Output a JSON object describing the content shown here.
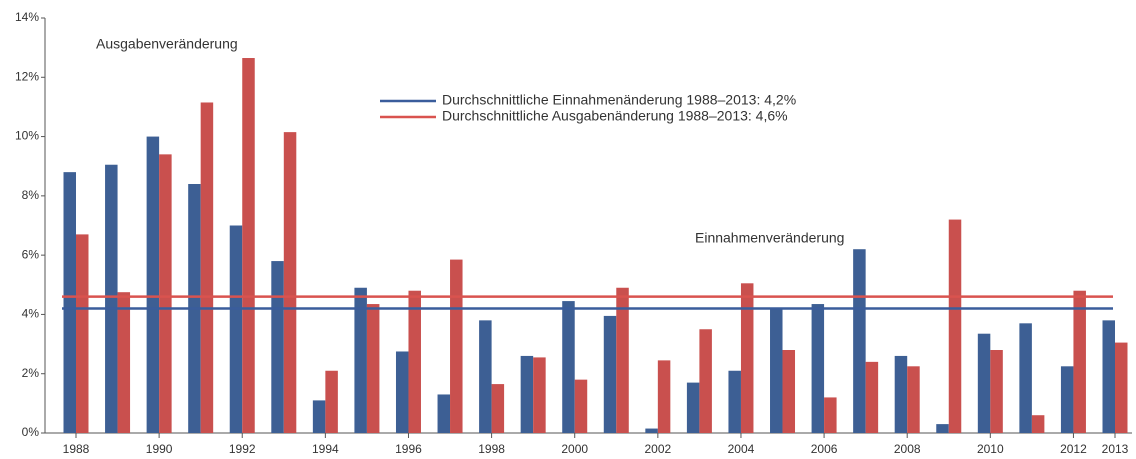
{
  "chart_data": {
    "type": "bar",
    "categories": [
      "1988",
      null,
      "1990",
      null,
      "1992",
      null,
      "1994",
      null,
      "1996",
      null,
      "1998",
      null,
      "2000",
      null,
      "2002",
      null,
      "2004",
      null,
      "2006",
      null,
      "2008",
      null,
      "2010",
      null,
      "2012",
      "2013"
    ],
    "series": [
      {
        "name": "Einnahmenveränderung",
        "color": "#3d5f94",
        "values": [
          8.8,
          9.05,
          10.0,
          8.4,
          7.0,
          5.8,
          1.1,
          4.9,
          2.75,
          1.3,
          3.8,
          2.6,
          4.45,
          3.95,
          0.15,
          1.7,
          2.1,
          4.2,
          4.35,
          6.2,
          2.6,
          0.3,
          3.35,
          3.7,
          2.25,
          3.8
        ]
      },
      {
        "name": "Ausgabenveränderung",
        "color": "#c9504e",
        "values": [
          6.7,
          4.75,
          9.4,
          11.15,
          12.65,
          10.15,
          2.1,
          4.35,
          4.8,
          5.85,
          1.65,
          2.55,
          1.8,
          4.9,
          2.45,
          3.5,
          5.05,
          2.8,
          1.2,
          2.4,
          2.25,
          7.2,
          2.8,
          0.6,
          4.8,
          3.05
        ]
      }
    ],
    "reference_lines": [
      {
        "name": "Durchschnittliche Einnahmenänderung 1988–2013: 4,2%",
        "value": 4.2,
        "color": "#3a5d9c"
      },
      {
        "name": "Durchschnittliche Ausgabenänderung 1988–2013: 4,6%",
        "value": 4.6,
        "color": "#d9534f"
      }
    ],
    "ylim": [
      0,
      14
    ],
    "yticks": [
      {
        "value": 0,
        "label": "0%"
      },
      {
        "value": 2,
        "label": "2%"
      },
      {
        "value": 4,
        "label": "4%"
      },
      {
        "value": 6,
        "label": "6%"
      },
      {
        "value": 8,
        "label": "8%"
      },
      {
        "value": 10,
        "label": "10%"
      },
      {
        "value": 12,
        "label": "12%"
      },
      {
        "value": 14,
        "label": "14%"
      }
    ],
    "grid": false
  }
}
